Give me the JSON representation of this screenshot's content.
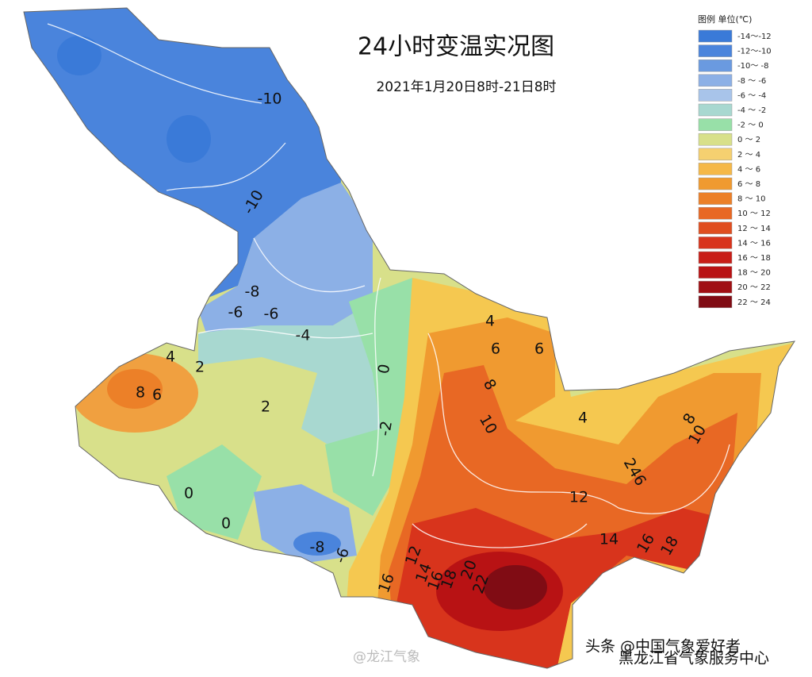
{
  "title": "24小时变温实况图",
  "subtitle": "2021年1月20日8时-21日8时",
  "legend": {
    "title": "图例  单位(℃)",
    "items": [
      {
        "label": "-14～-12",
        "color": "#3a7ad8"
      },
      {
        "label": "-12～-10",
        "color": "#4a84dc"
      },
      {
        "label": "-10～ -8",
        "color": "#6a9ae0"
      },
      {
        "label": "-8 ～ -6",
        "color": "#8cb0e6"
      },
      {
        "label": "-6 ～ -4",
        "color": "#a8c4ea"
      },
      {
        "label": "-4 ～ -2",
        "color": "#a8d8d0"
      },
      {
        "label": "-2 ～ 0",
        "color": "#98e0a8"
      },
      {
        "label": "0  ～ 2",
        "color": "#d8e08a"
      },
      {
        "label": "2  ～ 4",
        "color": "#f5d070"
      },
      {
        "label": "4  ～ 6",
        "color": "#f5b848"
      },
      {
        "label": "6  ～ 8",
        "color": "#f09a30"
      },
      {
        "label": "8  ～ 10",
        "color": "#ec8028"
      },
      {
        "label": "10 ～ 12",
        "color": "#e86824"
      },
      {
        "label": "12 ～ 14",
        "color": "#e04e20"
      },
      {
        "label": "14 ～ 16",
        "color": "#d8341c"
      },
      {
        "label": "16 ～ 18",
        "color": "#c81e18"
      },
      {
        "label": "18 ～ 20",
        "color": "#b81214"
      },
      {
        "label": "20 ～ 22",
        "color": "#a01014"
      },
      {
        "label": "22 ～ 24",
        "color": "#800c14"
      }
    ]
  },
  "contour_labels": [
    "-10",
    "-10",
    "-8",
    "-6",
    "-6",
    "-4",
    "0",
    "-2",
    "2",
    "4",
    "8",
    "6",
    "2",
    "0",
    "0",
    "4",
    "6",
    "6",
    "8",
    "10",
    "4",
    "246",
    "12",
    "14",
    "16",
    "18",
    "10",
    "8",
    "12",
    "14",
    "16",
    "18",
    "20",
    "22",
    "-8",
    "-6",
    "16"
  ],
  "watermarks": [
    "@龙江气象",
    "头条 @中国气象爱好者",
    "黑龙江省气象服务中心"
  ]
}
